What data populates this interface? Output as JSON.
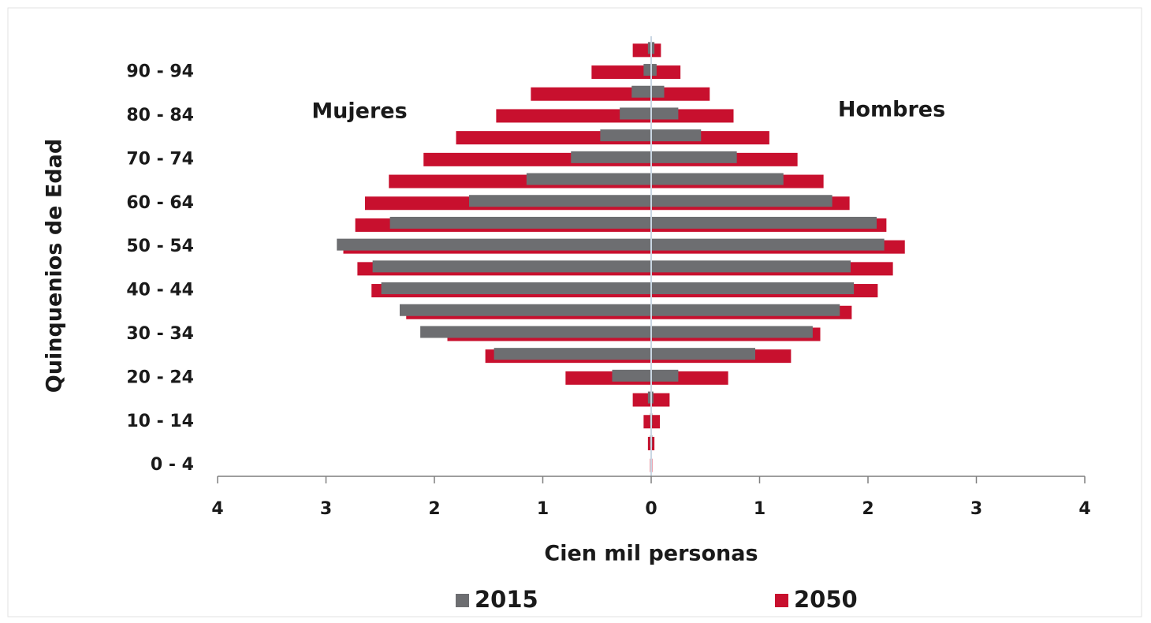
{
  "chart_data": {
    "type": "pyramid",
    "x_label": "Cien mil personas",
    "y_label": "Quinquenios de Edad",
    "annotations": [
      "Mujeres",
      "Hombres"
    ],
    "categories": [
      "0 - 4",
      null,
      "10 - 14",
      null,
      "20 - 24",
      null,
      "30 - 34",
      null,
      "40 - 44",
      null,
      "50 - 54",
      null,
      "60 - 64",
      null,
      "70 - 74",
      null,
      "80 - 84",
      null,
      "90 - 94",
      null
    ],
    "series": [
      {
        "name": "2050",
        "color": "#c8102e",
        "mujeres": [
          -0.01,
          -0.03,
          -0.07,
          -0.17,
          -0.79,
          -1.53,
          -1.88,
          -2.26,
          -2.58,
          -2.71,
          -2.84,
          -2.73,
          -2.64,
          -2.42,
          -2.1,
          -1.8,
          -1.43,
          -1.11,
          -0.55,
          -0.17
        ],
        "hombres": [
          0.01,
          0.03,
          0.08,
          0.17,
          0.71,
          1.29,
          1.56,
          1.85,
          2.09,
          2.23,
          2.34,
          2.17,
          1.83,
          1.59,
          1.35,
          1.09,
          0.76,
          0.54,
          0.27,
          0.09
        ]
      },
      {
        "name": "2015",
        "color": "#6d6e71",
        "mujeres": [
          0,
          -0.01,
          -0.01,
          -0.03,
          -0.36,
          -1.45,
          -2.13,
          -2.32,
          -2.49,
          -2.57,
          -2.9,
          -2.41,
          -1.68,
          -1.15,
          -0.74,
          -0.47,
          -0.29,
          -0.18,
          -0.07,
          -0.03
        ],
        "hombres": [
          0,
          0.01,
          0.01,
          0.02,
          0.25,
          0.96,
          1.49,
          1.74,
          1.87,
          1.84,
          2.15,
          2.08,
          1.67,
          1.22,
          0.79,
          0.46,
          0.25,
          0.12,
          0.05,
          0.03
        ]
      }
    ],
    "legend_order": [
      1,
      0
    ],
    "xlim": [
      -4,
      4
    ],
    "xticks": [
      {
        "value": -4,
        "label": "4"
      },
      {
        "value": -3,
        "label": "3"
      },
      {
        "value": -2,
        "label": "2"
      },
      {
        "value": -1,
        "label": "1"
      },
      0,
      1,
      2,
      3,
      4
    ]
  }
}
